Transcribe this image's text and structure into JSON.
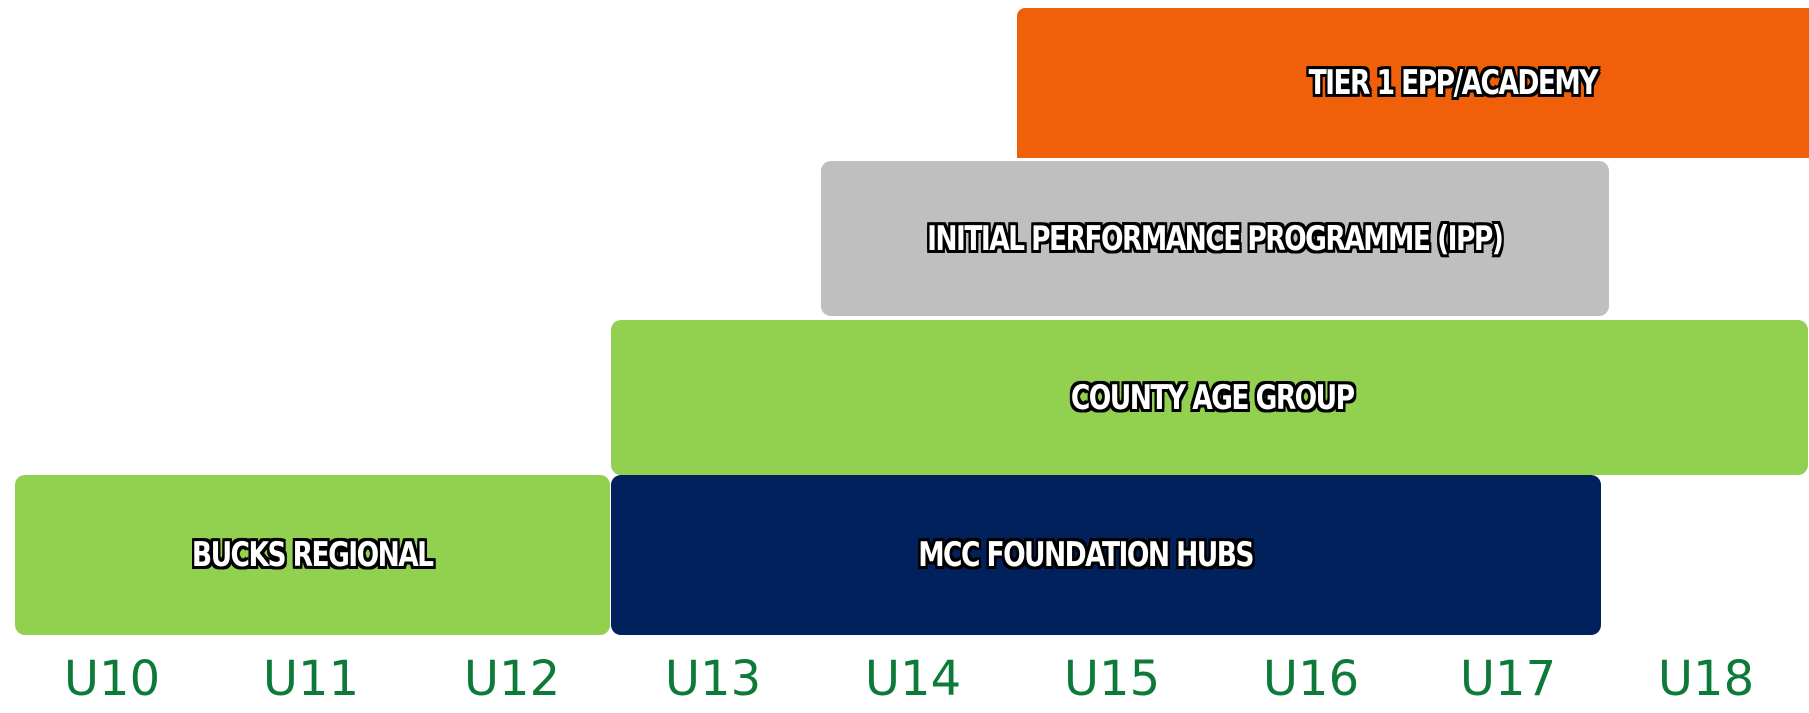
{
  "colors": {
    "tier1": "#F05F0A",
    "ipp": "#BFBFBF",
    "county": "#92D050",
    "bucks": "#92D050",
    "mcc": "#00215C",
    "axis_text": "#0E7A3A"
  },
  "bars": {
    "tier1": {
      "label": "TIER 1 EPP/ACADEMY"
    },
    "ipp": {
      "label": "INITIAL PERFORMANCE PROGRAMME (IPP)"
    },
    "county": {
      "label": "COUNTY AGE GROUP"
    },
    "bucks": {
      "label": "BUCKS REGIONAL"
    },
    "mcc": {
      "label": "MCC FOUNDATION HUBS"
    }
  },
  "axis": {
    "ages": [
      "U10",
      "U11",
      "U12",
      "U13",
      "U14",
      "U15",
      "U16",
      "U17",
      "U18"
    ]
  }
}
